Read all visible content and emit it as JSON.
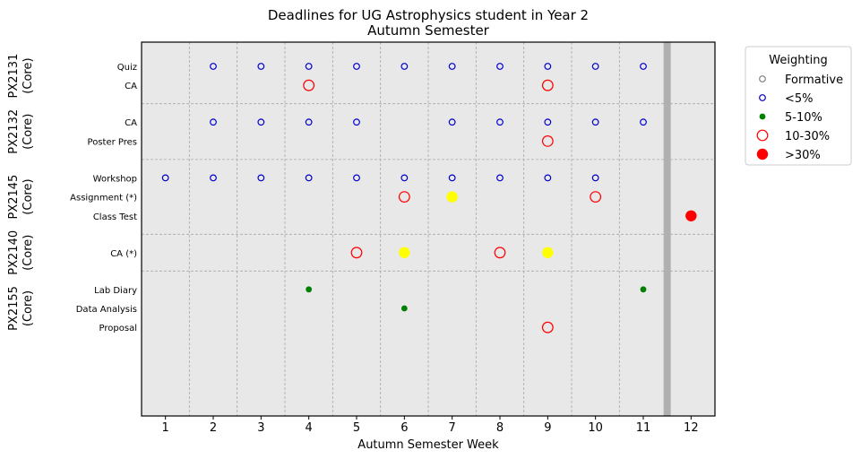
{
  "chart_data": {
    "type": "scatter",
    "title_line1": "Deadlines for UG Astrophysics student in Year 2",
    "title_line2": "Autumn Semester",
    "xlabel": "Autumn Semester Week",
    "ylabel": "",
    "xlim": [
      0.5,
      12.5
    ],
    "xticks": [
      "1",
      "2",
      "3",
      "4",
      "5",
      "6",
      "7",
      "8",
      "9",
      "10",
      "11",
      "12"
    ],
    "grid": true,
    "reading_week": 11.5,
    "modules": [
      {
        "code": "PX2131",
        "type": "(Core)",
        "rows": [
          {
            "label": "Quiz",
            "points": [
              {
                "week": 2,
                "cat": "lt5"
              },
              {
                "week": 3,
                "cat": "lt5"
              },
              {
                "week": 4,
                "cat": "lt5"
              },
              {
                "week": 5,
                "cat": "lt5"
              },
              {
                "week": 6,
                "cat": "lt5"
              },
              {
                "week": 7,
                "cat": "lt5"
              },
              {
                "week": 8,
                "cat": "lt5"
              },
              {
                "week": 9,
                "cat": "lt5"
              },
              {
                "week": 10,
                "cat": "lt5"
              },
              {
                "week": 11,
                "cat": "lt5"
              }
            ]
          },
          {
            "label": "CA",
            "points": [
              {
                "week": 4,
                "cat": "10to30"
              },
              {
                "week": 9,
                "cat": "10to30"
              }
            ]
          }
        ]
      },
      {
        "code": "PX2132",
        "type": "(Core)",
        "rows": [
          {
            "label": "CA",
            "points": [
              {
                "week": 2,
                "cat": "lt5"
              },
              {
                "week": 3,
                "cat": "lt5"
              },
              {
                "week": 4,
                "cat": "lt5"
              },
              {
                "week": 5,
                "cat": "lt5"
              },
              {
                "week": 7,
                "cat": "lt5"
              },
              {
                "week": 8,
                "cat": "lt5"
              },
              {
                "week": 9,
                "cat": "lt5"
              },
              {
                "week": 10,
                "cat": "lt5"
              },
              {
                "week": 11,
                "cat": "lt5"
              }
            ]
          },
          {
            "label": "Poster Pres",
            "points": [
              {
                "week": 9,
                "cat": "10to30"
              }
            ]
          }
        ]
      },
      {
        "code": "PX2145",
        "type": "(Core)",
        "rows": [
          {
            "label": "Workshop",
            "points": [
              {
                "week": 1,
                "cat": "lt5"
              },
              {
                "week": 2,
                "cat": "lt5"
              },
              {
                "week": 3,
                "cat": "lt5"
              },
              {
                "week": 4,
                "cat": "lt5"
              },
              {
                "week": 5,
                "cat": "lt5"
              },
              {
                "week": 6,
                "cat": "lt5"
              },
              {
                "week": 7,
                "cat": "lt5"
              },
              {
                "week": 8,
                "cat": "lt5"
              },
              {
                "week": 9,
                "cat": "lt5"
              },
              {
                "week": 10,
                "cat": "lt5"
              }
            ]
          },
          {
            "label": "Assignment (*)",
            "points": [
              {
                "week": 6,
                "cat": "10to30"
              },
              {
                "week": 7,
                "cat": "hl"
              },
              {
                "week": 10,
                "cat": "10to30"
              }
            ]
          },
          {
            "label": "Class Test",
            "points": [
              {
                "week": 12,
                "cat": "gt30"
              }
            ]
          }
        ]
      },
      {
        "code": "PX2140",
        "type": "(Core)",
        "rows": [
          {
            "label": "CA (*)",
            "points": [
              {
                "week": 5,
                "cat": "10to30"
              },
              {
                "week": 6,
                "cat": "hl"
              },
              {
                "week": 8,
                "cat": "10to30"
              },
              {
                "week": 9,
                "cat": "hl"
              }
            ]
          }
        ]
      },
      {
        "code": "PX2155",
        "type": "(Core)",
        "rows": [
          {
            "label": "Lab Diary",
            "points": [
              {
                "week": 4,
                "cat": "5to10"
              },
              {
                "week": 11,
                "cat": "5to10"
              }
            ]
          },
          {
            "label": "Data Analysis",
            "points": [
              {
                "week": 6,
                "cat": "5to10"
              }
            ]
          },
          {
            "label": "Proposal",
            "points": [
              {
                "week": 9,
                "cat": "10to30"
              }
            ]
          }
        ]
      }
    ],
    "legend": {
      "title": "Weighting",
      "placement": "outside-right",
      "entries": [
        {
          "key": "formative",
          "label": "Formative"
        },
        {
          "key": "lt5",
          "label": "<5%"
        },
        {
          "key": "5to10",
          "label": "5-10%"
        },
        {
          "key": "10to30",
          "label": "10-30%"
        },
        {
          "key": "gt30",
          "label": ">30%"
        }
      ]
    },
    "colors": {
      "panel": "#e8e8e8",
      "grid": "#a8a8a8",
      "lt5": "#0000cc",
      "5to10": "#008000",
      "10to30": "#ff0000",
      "gt30": "#ff0000",
      "formative": "#808080",
      "highlight": "#ffff00",
      "reading_week": "#b0b0b0"
    }
  }
}
